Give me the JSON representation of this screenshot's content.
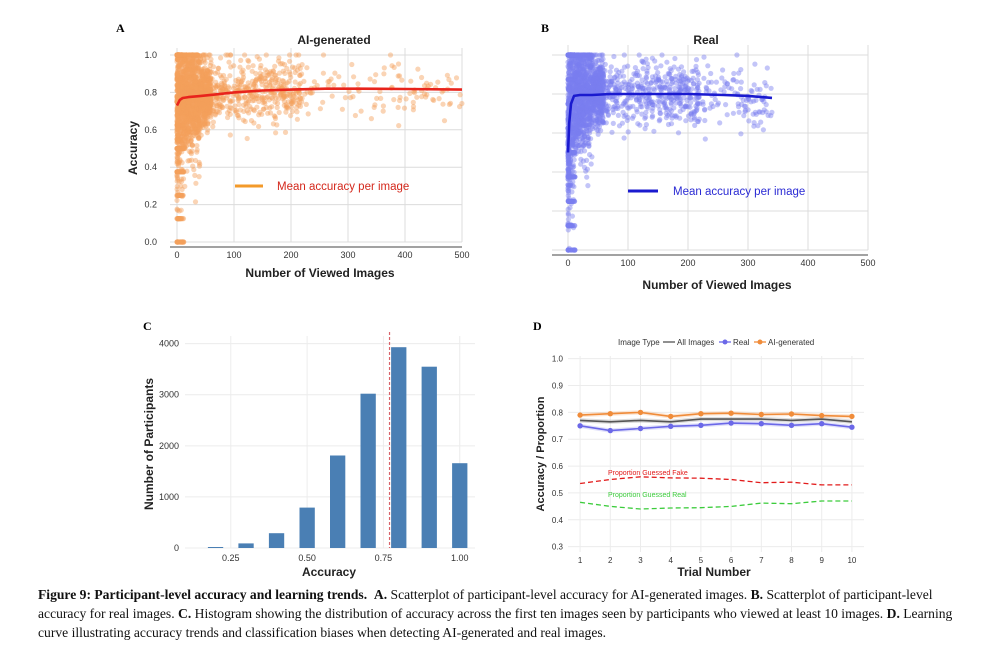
{
  "chart_data": [
    {
      "panel": "A",
      "type": "scatter",
      "title": "AI-generated",
      "xlabel": "Number of Viewed Images",
      "ylabel": "Accuracy",
      "xlim": [
        0,
        500
      ],
      "ylim": [
        0,
        1
      ],
      "xticks": [
        "0",
        "100",
        "200",
        "300",
        "400",
        "500"
      ],
      "yticks": [
        "0.0",
        "0.2",
        "0.4",
        "0.6",
        "0.8",
        "1.0"
      ],
      "point_color": "#f5a05a",
      "line_color": "#e8241c",
      "legend": "Mean accuracy per image",
      "legend_swatch_color": "#f39a2a",
      "trend": {
        "x": [
          0,
          5,
          10,
          20,
          40,
          70,
          100,
          150,
          200,
          260,
          320,
          400,
          500
        ],
        "y": [
          0.73,
          0.76,
          0.77,
          0.775,
          0.78,
          0.79,
          0.8,
          0.81,
          0.815,
          0.82,
          0.82,
          0.818,
          0.815
        ]
      },
      "scatter_summary": {
        "n": 2400,
        "x_max": 500,
        "dense_range": [
          0,
          60
        ]
      }
    },
    {
      "panel": "B",
      "type": "scatter",
      "title": "Real",
      "xlabel": "Number of Viewed Images",
      "ylabel": "",
      "xlim": [
        0,
        500
      ],
      "ylim": [
        0,
        1
      ],
      "xticks": [
        "0",
        "100",
        "200",
        "300",
        "400",
        "500"
      ],
      "yticks": [],
      "point_color": "#7b7ef0",
      "line_color": "#1a1acf",
      "legend": "Mean accuracy per image",
      "legend_swatch_color": "#1a1acf",
      "trend": {
        "x": [
          0,
          2,
          5,
          10,
          20,
          40,
          70,
          100,
          150,
          200,
          260,
          300,
          340
        ],
        "y": [
          0.5,
          0.65,
          0.75,
          0.79,
          0.795,
          0.795,
          0.8,
          0.8,
          0.8,
          0.8,
          0.795,
          0.79,
          0.78
        ]
      },
      "scatter_summary": {
        "n": 2400,
        "x_max": 340,
        "dense_range": [
          0,
          60
        ]
      }
    },
    {
      "panel": "C",
      "type": "bar",
      "title": "",
      "xlabel": "Accuracy",
      "ylabel": "Number of Participants",
      "xlim": [
        0.1,
        1.05
      ],
      "ylim": [
        0,
        4150
      ],
      "xticks": [
        "0.25",
        "0.50",
        "0.75",
        "1.00"
      ],
      "xtick_values": [
        0.25,
        0.5,
        0.75,
        1.0
      ],
      "yticks": [
        "0",
        "1000",
        "2000",
        "3000",
        "4000"
      ],
      "ytick_values": [
        0,
        1000,
        2000,
        3000,
        4000
      ],
      "bin_centers": [
        0.2,
        0.3,
        0.4,
        0.5,
        0.6,
        0.7,
        0.8,
        0.9,
        1.0
      ],
      "values": [
        20,
        90,
        290,
        790,
        1810,
        3020,
        3930,
        3550,
        1660
      ],
      "bar_color": "#4a7fb4",
      "reference_line": 0.77,
      "reference_color": "#d9636b"
    },
    {
      "panel": "D",
      "type": "line",
      "title": "",
      "xlabel": "Trial Number",
      "ylabel": "Accuracy / Proportion",
      "xlim": [
        0.6,
        10.4
      ],
      "ylim": [
        0.28,
        1.01
      ],
      "xticks": [
        "1",
        "2",
        "3",
        "4",
        "5",
        "6",
        "7",
        "8",
        "9",
        "10"
      ],
      "xtick_values": [
        1,
        2,
        3,
        4,
        5,
        6,
        7,
        8,
        9,
        10
      ],
      "yticks": [
        "0.3",
        "0.4",
        "0.5",
        "0.6",
        "0.7",
        "0.8",
        "0.9",
        "1.0"
      ],
      "ytick_values": [
        0.3,
        0.4,
        0.5,
        0.6,
        0.7,
        0.8,
        0.9,
        1.0
      ],
      "legend_title": "Image Type",
      "series": [
        {
          "name": "All Images",
          "color": "#555555",
          "marker": false,
          "dashed": false,
          "values": [
            0.77,
            0.765,
            0.77,
            0.765,
            0.775,
            0.775,
            0.775,
            0.77,
            0.775,
            0.765
          ]
        },
        {
          "name": "Real",
          "color": "#6b68e8",
          "marker": true,
          "dashed": false,
          "values": [
            0.75,
            0.732,
            0.74,
            0.748,
            0.752,
            0.76,
            0.758,
            0.752,
            0.758,
            0.745
          ]
        },
        {
          "name": "AI-generated",
          "color": "#f08c3a",
          "marker": true,
          "dashed": false,
          "values": [
            0.79,
            0.795,
            0.8,
            0.785,
            0.795,
            0.797,
            0.792,
            0.794,
            0.788,
            0.785
          ]
        },
        {
          "name": "Proportion Guessed Fake",
          "color": "#e21b1b",
          "marker": false,
          "dashed": true,
          "values": [
            0.535,
            0.55,
            0.56,
            0.556,
            0.555,
            0.55,
            0.538,
            0.54,
            0.53,
            0.53
          ]
        },
        {
          "name": "Proportion Guessed Real",
          "color": "#3ccc3c",
          "marker": false,
          "dashed": true,
          "values": [
            0.465,
            0.45,
            0.44,
            0.444,
            0.445,
            0.45,
            0.462,
            0.46,
            0.47,
            0.47
          ]
        }
      ],
      "annotations": [
        "Proportion Guessed Fake",
        "Proportion Guessed Real"
      ]
    }
  ],
  "panel_labels": [
    "A",
    "B",
    "C",
    "D"
  ],
  "caption": {
    "bold": "Figure 9: Participant-level accuracy and learning trends.",
    "parts": [
      {
        "bold": "A.",
        "text": "Scatterplot of participant-level accuracy for AI-generated images."
      },
      {
        "bold": "B.",
        "text": "Scatterplot of participant-level accuracy for real images."
      },
      {
        "bold": "C.",
        "text": "Histogram showing the distribution of accuracy across the first ten images seen by participants who viewed at least 10 images."
      },
      {
        "bold": "D.",
        "text": "Learning curve illustrating accuracy trends and classification biases when detecting AI-generated and real images."
      }
    ]
  }
}
